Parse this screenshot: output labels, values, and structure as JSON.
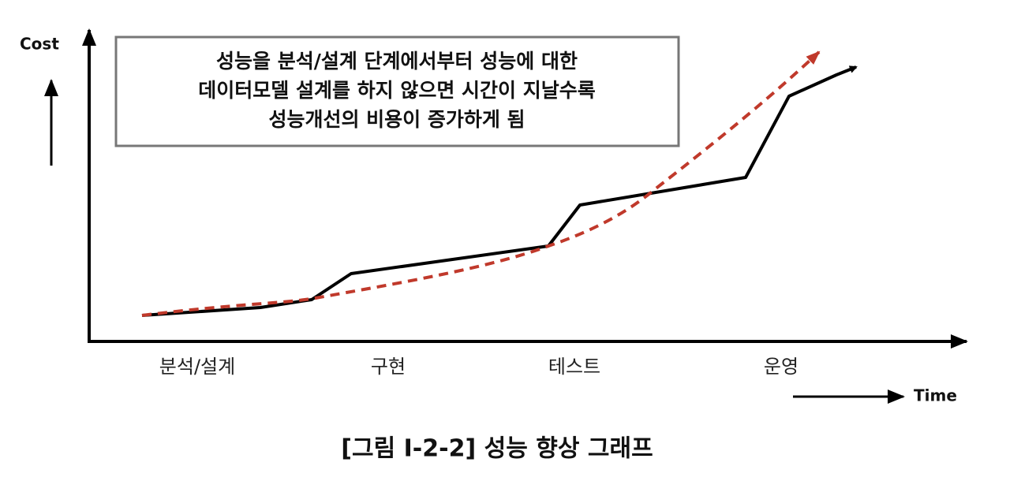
{
  "axis": {
    "y_label": "Cost",
    "x_label": "Time"
  },
  "note": {
    "lines": [
      "성능을 분석/설계 단계에서부터 성능에 대한",
      "데이터모델 설계를 하지 않으면 시간이 지날수록",
      "성능개선의 비용이 증가하게 됨"
    ]
  },
  "phases": [
    "분석/설계",
    "구현",
    "테스트",
    "운영"
  ],
  "caption": "[그림 Ⅰ-2-2] 성능 향상 그래프"
}
